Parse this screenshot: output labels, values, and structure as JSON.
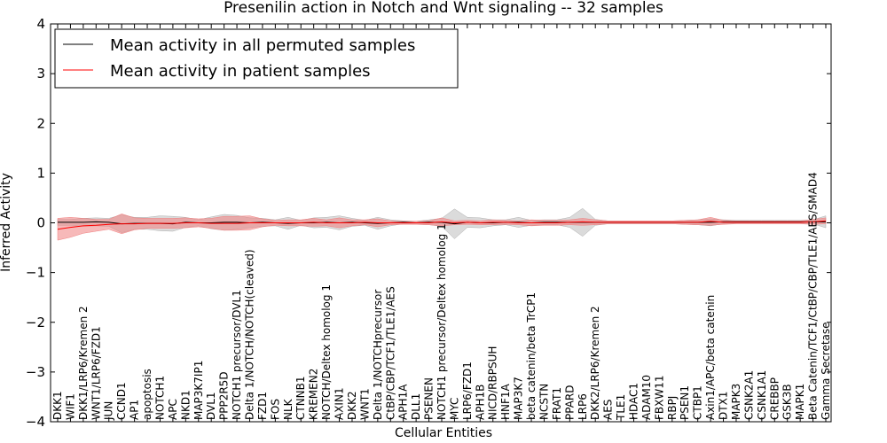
{
  "chart_data": {
    "type": "line",
    "title": "Presenilin action in Notch and Wnt signaling -- 32 samples",
    "xlabel": "Cellular Entities",
    "ylabel": "Inferred Activity",
    "ylim": [
      -4,
      4
    ],
    "yticks": [
      -4,
      -3,
      -2,
      -1,
      0,
      1,
      2,
      3,
      4
    ],
    "ytick_labels": [
      "−4",
      "−3",
      "−2",
      "−1",
      "0",
      "1",
      "2",
      "3",
      "4"
    ],
    "legend_position": "top-left",
    "categories": [
      "DKK1",
      "WIF1",
      "DKK1/LRP6/Kremen 2",
      "WNT1/LRP6/FZD1",
      "JUN",
      "CCND1",
      "AP1",
      "apoptosis",
      "NOTCH1",
      "APC",
      "NKD1",
      "MAP3K7IP1",
      "DVL1",
      "PPP2R5D",
      "NOTCH1 precursor/DVL1",
      "Delta 1/NOTCH/NOTCH(cleaved)",
      "FZD1",
      "FOS",
      "NLK",
      "CTNNB1",
      "KREMEN2",
      "NOTCH/Deltex homolog 1",
      "AXIN1",
      "DKK2",
      "WNT1",
      "Delta 1/NOTCHprecursor",
      "CtBP/CBP/TCF1/TLE1/AES",
      "APH1A",
      "DLL1",
      "PSENEN",
      "NOTCH1 precursor/Deltex homolog 1",
      "MYC",
      "LRP6/FZD1",
      "APH1B",
      "NICD/RBPSUH",
      "HNF1A",
      "MAP3K7",
      "beta catenin/beta TrCP1",
      "NCSTN",
      "FRAT1",
      "PPARD",
      "LRP6",
      "DKK2/LRP6/Kremen 2",
      "AES",
      "TLE1",
      "HDAC1",
      "ADAM10",
      "FBXW11",
      "RBPJ",
      "PSEN1",
      "CTBP1",
      "Axin1/APC/beta catenin",
      "DTX1",
      "MAPK3",
      "CSNK2A1",
      "CSNK1A1",
      "CREBBP",
      "GSK3B",
      "MAPK1",
      "Beta Catenin/TCF1/CtBP/CBP/TLE1/AES/SMAD4",
      "Gamma Secretase"
    ],
    "series": [
      {
        "name": "Mean activity in all permuted samples",
        "color": "#000000",
        "band_color": "#b0b0b0",
        "values": [
          0.01,
          0.01,
          0.01,
          0.02,
          0.01,
          -0.02,
          -0.01,
          -0.01,
          -0.01,
          -0.02,
          0.01,
          0.0,
          0.0,
          0.01,
          0.01,
          0.0,
          0.01,
          0.0,
          -0.01,
          0.0,
          0.0,
          0.01,
          0.0,
          0.01,
          0.0,
          -0.01,
          0.0,
          0.01,
          0.0,
          0.01,
          0.01,
          -0.02,
          0.01,
          0.0,
          0.0,
          0.01,
          0.01,
          0.0,
          0.01,
          0.01,
          0.01,
          0.01,
          0.01,
          0.01,
          0.01,
          0.01,
          0.01,
          0.01,
          0.01,
          0.01,
          0.01,
          0.01,
          0.02,
          0.02,
          0.02,
          0.02,
          0.02,
          0.02,
          0.02,
          0.02,
          0.02
        ],
        "band": [
          0.06,
          0.06,
          0.08,
          0.08,
          0.08,
          0.18,
          0.12,
          0.12,
          0.15,
          0.15,
          0.1,
          0.06,
          0.12,
          0.16,
          0.14,
          0.1,
          0.08,
          0.06,
          0.12,
          0.05,
          0.1,
          0.1,
          0.14,
          0.08,
          0.05,
          0.12,
          0.06,
          0.03,
          0.03,
          0.05,
          0.08,
          0.3,
          0.1,
          0.1,
          0.06,
          0.05,
          0.1,
          0.05,
          0.05,
          0.05,
          0.1,
          0.28,
          0.06,
          0.03,
          0.03,
          0.03,
          0.03,
          0.03,
          0.03,
          0.04,
          0.05,
          0.07,
          0.04,
          0.03,
          0.03,
          0.03,
          0.03,
          0.03,
          0.03,
          0.04,
          0.12
        ]
      },
      {
        "name": "Mean activity in patient samples",
        "color": "#ff0000",
        "band_color": "#f08080",
        "values": [
          -0.13,
          -0.09,
          -0.06,
          -0.05,
          -0.03,
          -0.02,
          -0.02,
          -0.01,
          -0.01,
          -0.01,
          0.0,
          0.0,
          -0.01,
          -0.01,
          -0.01,
          0.0,
          0.0,
          0.0,
          0.0,
          0.0,
          0.01,
          0.0,
          0.0,
          0.0,
          0.01,
          0.0,
          0.0,
          0.0,
          0.0,
          0.0,
          0.02,
          0.0,
          0.01,
          0.0,
          0.01,
          0.01,
          0.0,
          0.0,
          0.0,
          0.0,
          0.01,
          0.02,
          0.01,
          0.01,
          0.01,
          0.01,
          0.01,
          0.01,
          0.01,
          0.01,
          0.01,
          0.03,
          0.01,
          0.01,
          0.01,
          0.01,
          0.01,
          0.01,
          0.01,
          0.02,
          0.04
        ],
        "band": [
          0.22,
          0.2,
          0.15,
          0.12,
          0.1,
          0.2,
          0.12,
          0.1,
          0.1,
          0.1,
          0.1,
          0.08,
          0.1,
          0.14,
          0.14,
          0.14,
          0.08,
          0.05,
          0.06,
          0.06,
          0.08,
          0.06,
          0.1,
          0.06,
          0.05,
          0.08,
          0.04,
          0.03,
          0.03,
          0.04,
          0.08,
          0.04,
          0.04,
          0.04,
          0.05,
          0.04,
          0.04,
          0.06,
          0.05,
          0.05,
          0.05,
          0.07,
          0.05,
          0.03,
          0.03,
          0.03,
          0.03,
          0.03,
          0.03,
          0.04,
          0.05,
          0.08,
          0.04,
          0.03,
          0.03,
          0.03,
          0.03,
          0.03,
          0.03,
          0.05,
          0.06
        ]
      }
    ]
  }
}
